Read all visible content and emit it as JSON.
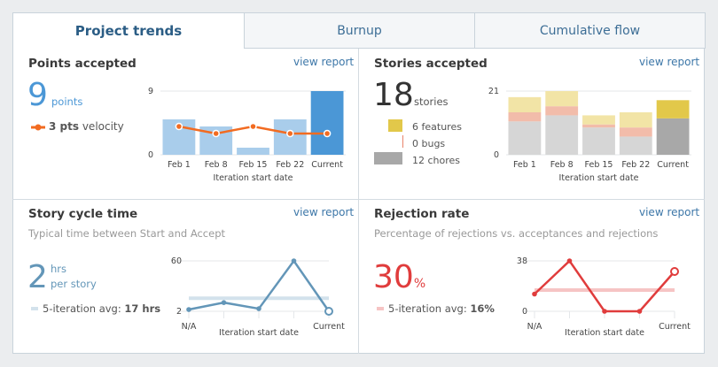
{
  "tabs": [
    {
      "label": "Project trends",
      "active": true
    },
    {
      "label": "Burnup"
    },
    {
      "label": "Cumulative flow"
    }
  ],
  "points": {
    "title": "Points accepted",
    "link": "view report",
    "value": "9",
    "unit": "points",
    "velocity_value": "3 pts",
    "velocity_label": "velocity",
    "colors": {
      "bar": "#a9cdeb",
      "current": "#4b97d6",
      "velocity": "#f26b21"
    }
  },
  "stories": {
    "title": "Stories accepted",
    "link": "view report",
    "value": "18",
    "unit": "stories",
    "legend": [
      {
        "label": "6 features",
        "color": "#e2c84a"
      },
      {
        "label": "0 bugs",
        "color": "#e9836a"
      },
      {
        "label": "12 chores",
        "color": "#a8a8a8"
      }
    ]
  },
  "cycle": {
    "title": "Story cycle time",
    "link": "view report",
    "subtitle": "Typical time between Start and Accept",
    "value": "2",
    "unit1": "hrs",
    "unit2": "per story",
    "avg_label": "5-iteration avg:",
    "avg_value": "17 hrs",
    "color": "#6396b8"
  },
  "rejection": {
    "title": "Rejection rate",
    "link": "view report",
    "subtitle": "Percentage of rejections vs. acceptances and rejections",
    "value": "30",
    "unit": "%",
    "avg_label": "5-iteration avg:",
    "avg_value": "16%",
    "color": "#e03c3c"
  },
  "chart_data": [
    {
      "type": "bar",
      "categories": [
        "Feb 1",
        "Feb 8",
        "Feb 15",
        "Feb 22",
        "Current"
      ],
      "xlabel": "Iteration start date",
      "ylim": [
        0,
        9
      ],
      "yticks": [
        "0",
        "9"
      ],
      "series": [
        {
          "values": [
            5,
            4,
            1,
            5,
            9
          ]
        },
        {
          "name": "velocity",
          "type": "line",
          "values": [
            4,
            3,
            4,
            3,
            3
          ]
        }
      ]
    },
    {
      "type": "bar",
      "stacked": true,
      "categories": [
        "Feb 1",
        "Feb 8",
        "Feb 15",
        "Feb 22",
        "Current"
      ],
      "xlabel": "Iteration start date",
      "ylim": [
        0,
        21
      ],
      "yticks": [
        "0",
        "21"
      ],
      "series": [
        {
          "name": "chores",
          "values": [
            11,
            13,
            9,
            6,
            12
          ]
        },
        {
          "name": "bugs",
          "values": [
            3,
            3,
            1,
            3,
            0
          ]
        },
        {
          "name": "features",
          "values": [
            5,
            5,
            3,
            5,
            6
          ]
        }
      ]
    },
    {
      "type": "line",
      "categories": [
        "N/A",
        "",
        "",
        "",
        "Current"
      ],
      "xlabel": "Iteration start date",
      "ylim": [
        2,
        60
      ],
      "yticks": [
        "2",
        "60"
      ],
      "values": [
        4,
        12,
        5,
        60,
        2
      ],
      "average": 17
    },
    {
      "type": "line",
      "categories": [
        "N/A",
        "",
        "",
        "",
        "Current"
      ],
      "xlabel": "Iteration start date",
      "ylim": [
        0,
        38
      ],
      "yticks": [
        "0",
        "38"
      ],
      "values": [
        13,
        38,
        0,
        0,
        30
      ],
      "average": 16
    }
  ]
}
